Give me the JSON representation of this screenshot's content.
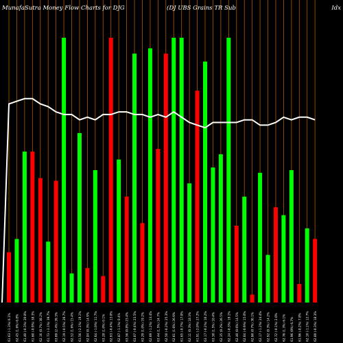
{
  "header": {
    "left": "MunafaSutra  Money Flow  Charts for DJG",
    "middle": "(DJ UBS Grains TR Sub",
    "right": "Idx"
  },
  "colors": {
    "background": "#000000",
    "up": "#00ff00",
    "down": "#ff0000",
    "line": "#ffffff",
    "grid": "#b35900",
    "text": "#ffffff"
  },
  "chart_data": {
    "type": "bar",
    "ylim": [
      0,
      100
    ],
    "grid": "vertical lines",
    "categories": [
      "61.63 (-1.3%) 6.1%",
      "62.45 (1.6%) 6.8%",
      "61.40 (-0.3%) 20.0%",
      "61.60 (-0.9%) 38.3%",
      "62.16 (0.7%) 38.2%",
      "61.73 (-3.1%) 39.7%",
      "63.69 (2.4%) 39.3%",
      "62.19 (-0.5%) 26.7%",
      "62.52 (1.6%) 15.4%",
      "61.56 (-2.1%) 19.1%",
      "62.84 (0.3%) 14.9%",
      "62.64 (-1.0%) 11.7%",
      "63.28 (1.0%) 0.1%",
      "62.63 (-0.4%) 13.0%",
      "62.87 (-1.1%) 0.4%",
      "63.56 (0.8%) 23.4%",
      "63.07 (-0.4%) 23.5%",
      "63.29 (1.0%) 19.2%",
      "62.69 (-1.2%) 13.4%",
      "63.44 (1.5%) 24.7%",
      "62.50 (-0.2%) 25.3%",
      "62.61 (1.6%) 26.9%",
      "61.65 (-0.7%) 17.0%",
      "62.11 (0.3%) 18.3%",
      "61.91 (-2.0%) 27.2%",
      "63.17 (-0.2%) 10.2%",
      "63.30 (1.5%) 10.4%",
      "62.35 (0.2%) 26.5%",
      "62.24 (-0.3%) 19.1%",
      "62.40 (0.6%) 14.5%",
      "62.04 (-0.9%) 15.0%",
      "62.60 (0.7%) 30.1%",
      "62.17 (-1.2%) 24.4%",
      "62.92 (0.3%) 14.2%",
      "62.72 (-0.1%) 2.0%",
      "62.76 (1.3%) 6.1%",
      "61.96 (0%) 6.7%",
      "61.96 (-0.2%) 7.8%",
      "62.10 (-1.1%) 12.7%",
      "62.80 (-0.3%) 18.3%"
    ],
    "values": [
      19,
      24,
      57,
      57,
      47,
      23,
      46,
      100,
      11,
      64,
      13,
      50,
      10,
      100,
      54,
      40,
      94,
      30,
      96,
      58,
      94,
      100,
      100,
      45,
      80,
      91,
      51,
      56,
      100,
      29,
      40,
      3,
      49,
      18,
      36,
      33,
      50,
      7,
      28,
      24
    ],
    "colors": [
      "r",
      "g",
      "g",
      "r",
      "r",
      "g",
      "r",
      "g",
      "g",
      "g",
      "r",
      "g",
      "r",
      "r",
      "g",
      "r",
      "g",
      "r",
      "g",
      "r",
      "r",
      "g",
      "g",
      "g",
      "r",
      "g",
      "g",
      "g",
      "g",
      "r",
      "g",
      "r",
      "g",
      "g",
      "r",
      "g",
      "g",
      "r",
      "g",
      "r"
    ],
    "line_values": [
      75,
      76,
      77,
      77,
      75,
      74,
      72,
      71,
      71,
      69,
      70,
      69,
      71,
      71,
      72,
      72,
      71,
      71,
      70,
      71,
      70,
      72,
      70,
      68,
      67,
      66,
      68,
      68,
      68,
      68,
      69,
      69,
      67,
      67,
      68,
      70,
      69,
      70,
      70,
      69
    ]
  }
}
